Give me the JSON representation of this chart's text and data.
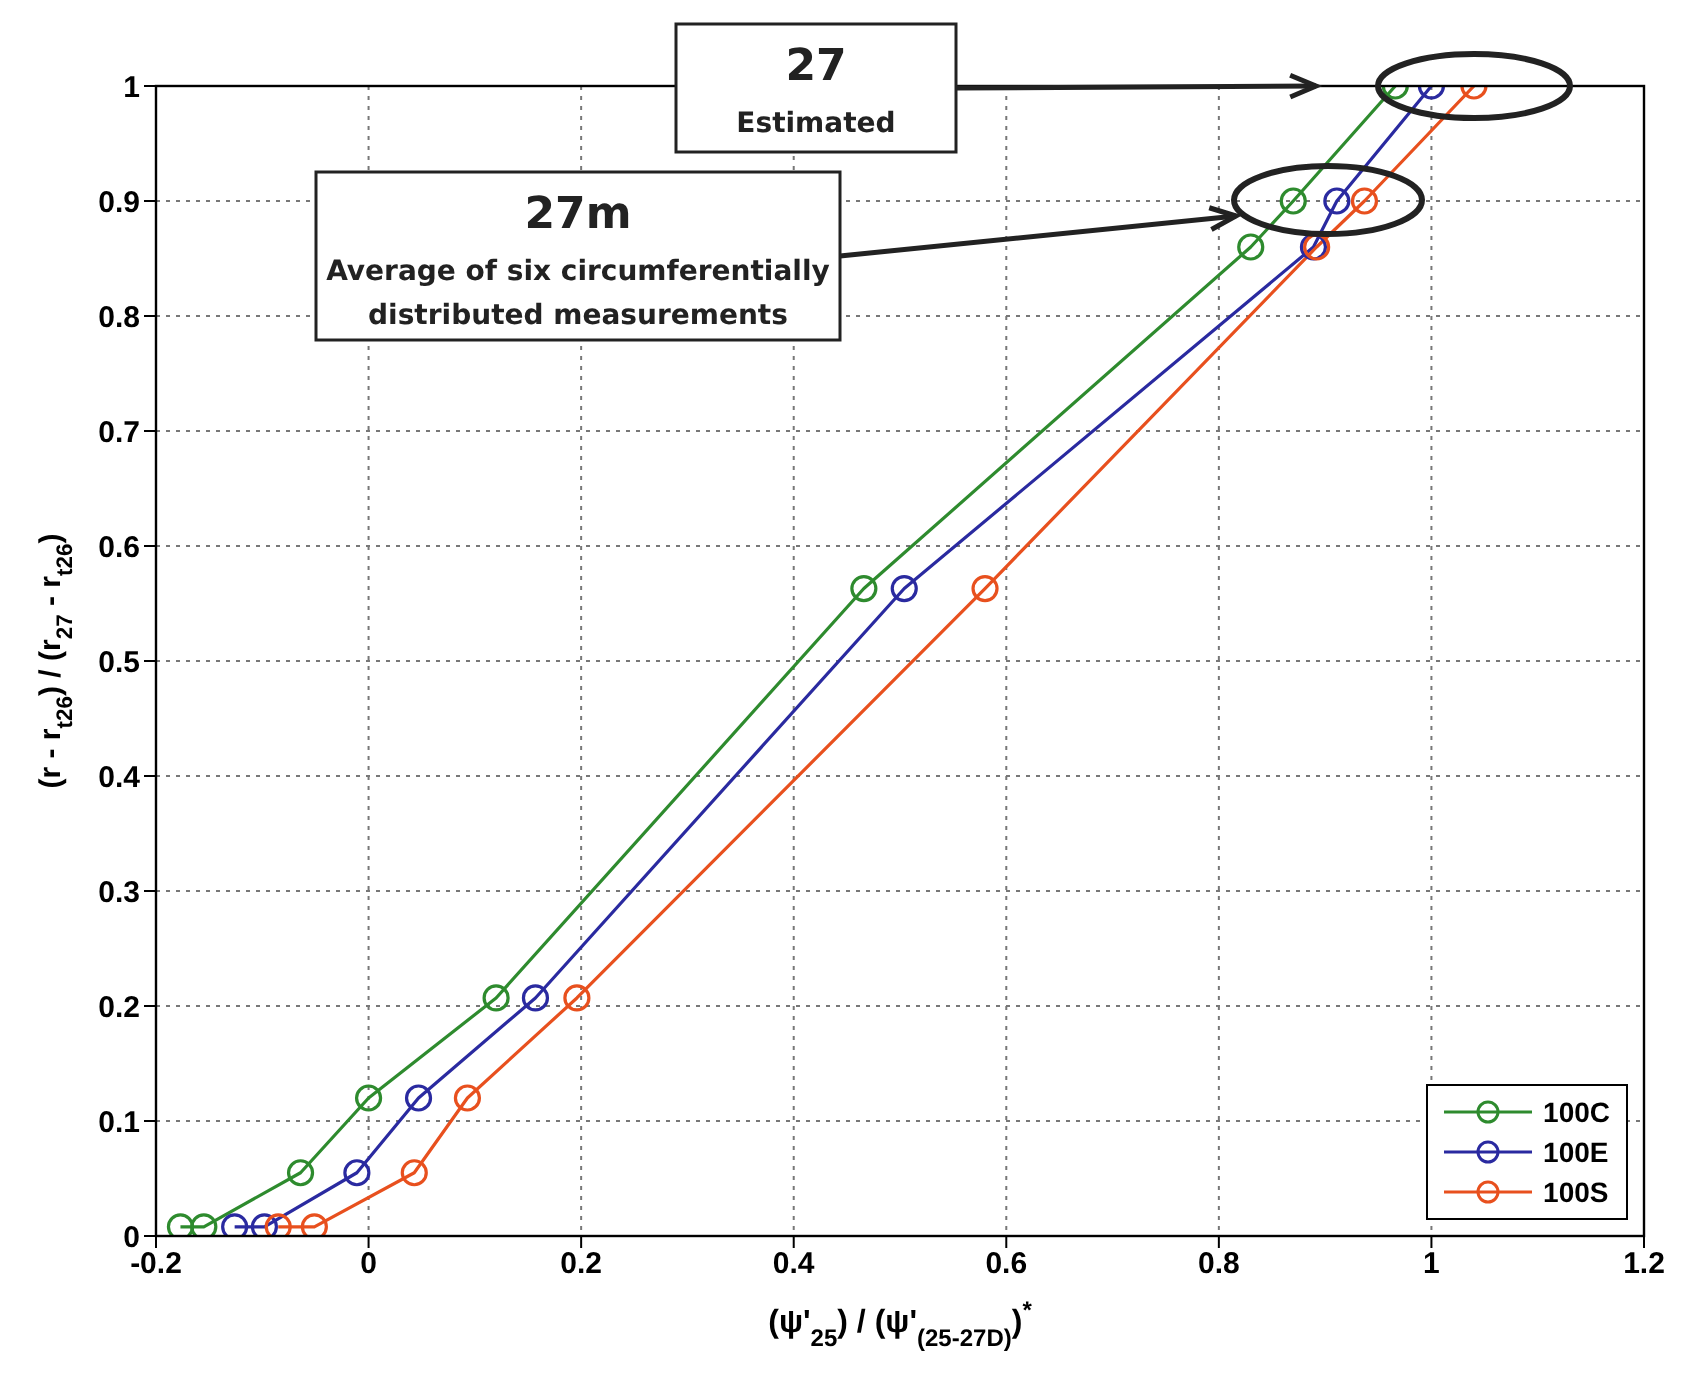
{
  "chart_data": {
    "type": "line",
    "xlabel": "(ψ'$_{25}$) / (ψ'$_{(25-27D)}$)$^{*}$",
    "ylabel": "(r - r$_{t26}$) / (r$_{27}$ - r$_{t26}$)",
    "xlim": [
      -0.2,
      1.2
    ],
    "xticks": [
      -0.2,
      0,
      0.2,
      0.4,
      0.6,
      0.8,
      1,
      1.2
    ],
    "ylim": [
      0,
      1
    ],
    "yticks": [
      0,
      0.1,
      0.2,
      0.3,
      0.4,
      0.5,
      0.6,
      0.7,
      0.8,
      0.9,
      1
    ],
    "grid": true,
    "legend": "bottom right",
    "marker": "circle",
    "line_style": "solid",
    "series": [
      {
        "name": "100C",
        "color": "#2e8b2e",
        "x": [
          -0.177,
          -0.155,
          -0.064,
          0.0,
          0.12,
          0.466,
          0.83,
          0.87,
          0.966
        ],
        "values": [
          0.008,
          0.008,
          0.055,
          0.12,
          0.207,
          0.563,
          0.86,
          0.9,
          1.0
        ]
      },
      {
        "name": "100E",
        "color": "#2a2aa0",
        "x": [
          -0.126,
          -0.098,
          -0.011,
          0.047,
          0.157,
          0.504,
          0.889,
          0.911,
          1.0
        ],
        "values": [
          0.008,
          0.008,
          0.055,
          0.12,
          0.207,
          0.563,
          0.86,
          0.9,
          1.0
        ]
      },
      {
        "name": "100S",
        "color": "#e8501e",
        "x": [
          -0.085,
          -0.051,
          0.043,
          0.093,
          0.196,
          0.58,
          0.892,
          0.937,
          1.04
        ],
        "values": [
          0.008,
          0.008,
          0.055,
          0.12,
          0.207,
          0.563,
          0.86,
          0.9,
          1.0
        ]
      }
    ],
    "annotations": [
      "27\nEstimated",
      "27m\nAverage of six circumferentially\ndistributed measurements"
    ]
  }
}
